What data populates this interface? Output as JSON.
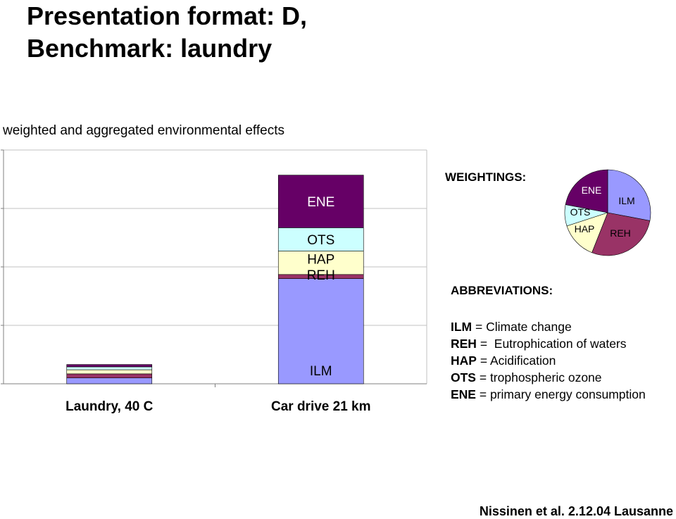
{
  "header": {
    "title_line1": "Presentation format: D,",
    "title_line2": "Benchmark: laundry"
  },
  "subtitle": "weighted and aggregated environmental effects",
  "weightings_label": "WEIGHTINGS:",
  "abbreviations": {
    "title": "ABBREVIATIONS:",
    "items": [
      {
        "code": "ILM",
        "sep": " = ",
        "desc": "Climate change"
      },
      {
        "code": "REH",
        "sep": " =  ",
        "desc": "Eutrophication of waters"
      },
      {
        "code": "HAP",
        "sep": " = ",
        "desc": "Acidification"
      },
      {
        "code": "OTS",
        "sep": " = ",
        "desc": "trophospheric ozone"
      },
      {
        "code": "ENE",
        "sep": " = ",
        "desc": "primary energy consumption"
      }
    ]
  },
  "footer": "Nissinen et al.  2.12.04 Lausanne",
  "colors": {
    "ILM": "#9999ff",
    "REH": "#993366",
    "HAP": "#ffffcc",
    "OTS": "#ccffff",
    "ENE": "#660066",
    "gridline": "#c0c0c0",
    "axis": "#808080"
  },
  "chart_data": [
    {
      "type": "bar",
      "stacked": true,
      "categories": [
        "Laundry, 40 C",
        "Car drive 21 km"
      ],
      "series": [
        {
          "name": "ILM",
          "values": [
            0.1,
            1.8
          ]
        },
        {
          "name": "REH",
          "values": [
            0.07,
            0.07
          ]
        },
        {
          "name": "HAP",
          "values": [
            0.07,
            0.4
          ]
        },
        {
          "name": "OTS",
          "values": [
            0.05,
            0.4
          ]
        },
        {
          "name": "ENE",
          "values": [
            0.04,
            0.9
          ]
        }
      ],
      "ylim": [
        0,
        4
      ],
      "grid": true,
      "in_bar_labels": [
        "ENE",
        "OTS",
        "HAP",
        "REH",
        "ILM"
      ]
    },
    {
      "type": "pie",
      "title": "WEIGHTINGS:",
      "slices": [
        {
          "label": "ILM",
          "value": 28
        },
        {
          "label": "REH",
          "value": 28
        },
        {
          "label": "HAP",
          "value": 14
        },
        {
          "label": "OTS",
          "value": 8
        },
        {
          "label": "ENE",
          "value": 22
        }
      ]
    }
  ]
}
